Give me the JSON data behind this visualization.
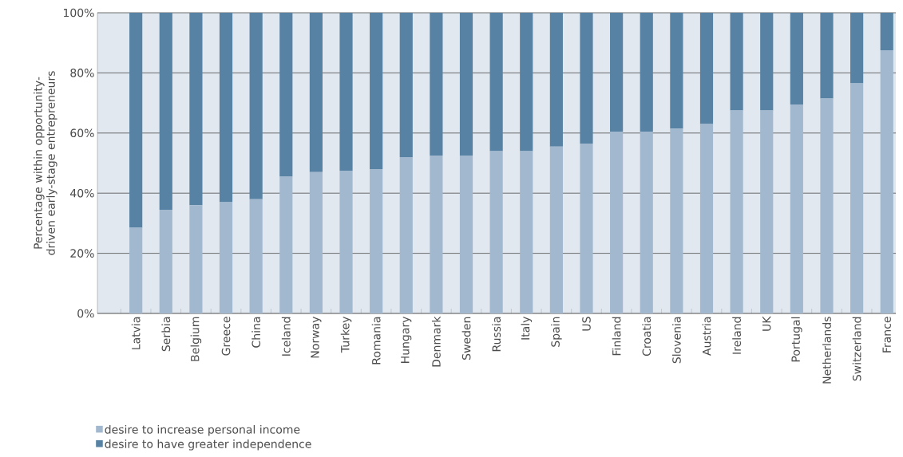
{
  "chart_data": {
    "type": "bar",
    "stacked": true,
    "ylabel": "Percentage within opportunity-driven early-stage entrepreneurs",
    "categories": [
      "Latvia",
      "Serbia",
      "Belgium",
      "Greece",
      "China",
      "Iceland",
      "Norway",
      "Turkey",
      "Romania",
      "Hungary",
      "Denmark",
      "Sweden",
      "Russia",
      "Italy",
      "Spain",
      "US",
      "Finland",
      "Croatia",
      "Slovenia",
      "Austria",
      "Ireland",
      "UK",
      "Portugal",
      "Netherlands",
      "Switzerland",
      "France"
    ],
    "series": [
      {
        "name": "desire to increase personal income",
        "color": "#a2b8ce",
        "values": [
          28.5,
          34.5,
          36,
          37,
          38,
          45.5,
          47,
          47.5,
          48,
          52,
          52.5,
          52.5,
          54,
          54,
          55.5,
          56.5,
          60.5,
          60.5,
          61.5,
          63,
          67.5,
          67.5,
          69.5,
          71.5,
          76.5,
          87.5
        ]
      },
      {
        "name": "desire to have greater independence",
        "color": "#5782a3",
        "values": [
          71.5,
          65.5,
          64,
          63,
          62,
          54.5,
          53,
          52.5,
          52,
          48,
          47.5,
          47.5,
          46,
          46,
          44.5,
          43.5,
          39.5,
          39.5,
          38.5,
          37,
          32.5,
          32.5,
          30.5,
          28.5,
          23.5,
          12.5
        ]
      }
    ],
    "ylim": [
      0,
      100
    ],
    "yticks": [
      {
        "value": 0,
        "label": "0%"
      },
      {
        "value": 20,
        "label": "20%"
      },
      {
        "value": 40,
        "label": "40%"
      },
      {
        "value": 60,
        "label": "60%"
      },
      {
        "value": 80,
        "label": "80%"
      },
      {
        "value": 100,
        "label": "100%"
      }
    ],
    "grid": "y",
    "legend": "bottom left"
  }
}
